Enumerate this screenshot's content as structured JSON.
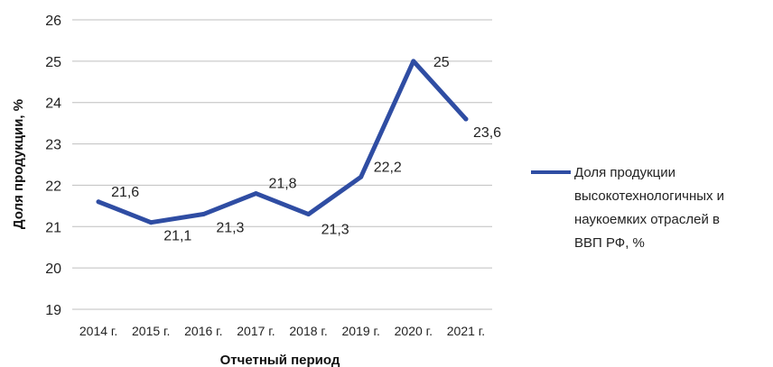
{
  "chart_data": {
    "type": "line",
    "categories": [
      "2014 г.",
      "2015 г.",
      "2016 г.",
      "2017 г.",
      "2018 г.",
      "2019 г.",
      "2020 г.",
      "2021 г."
    ],
    "x": [
      "2014",
      "2015",
      "2016",
      "2017",
      "2018",
      "2019",
      "2020",
      "2021"
    ],
    "series": [
      {
        "name": "Доля продукции высокотехнологичных и наукоемких отраслей в ВВП РФ, %",
        "name_lines": [
          "Доля продукции",
          "высокотехнологичных и",
          "наукоемких отраслей в",
          "ВВП РФ, %"
        ],
        "values": [
          21.6,
          21.1,
          21.3,
          21.8,
          21.3,
          22.2,
          25,
          23.6
        ],
        "labels": [
          "21,6",
          "21,1",
          "21,3",
          "21,8",
          "21,3",
          "22,2",
          "25",
          "23,6"
        ],
        "color": "#2f4da3"
      }
    ],
    "xlabel": "Отчетный период",
    "ylabel": "Доля продукции, %",
    "ylim": [
      19,
      26
    ],
    "yticks": [
      19,
      20,
      21,
      22,
      23,
      24,
      25,
      26
    ],
    "grid": true,
    "legend_position": "right"
  }
}
